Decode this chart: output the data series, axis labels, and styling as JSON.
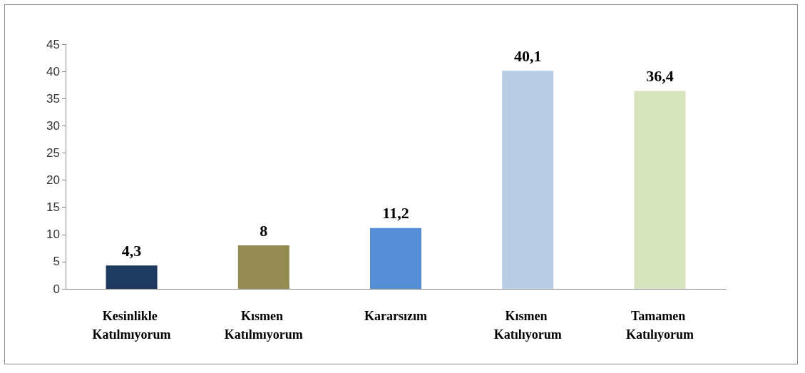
{
  "chart_data": {
    "type": "bar",
    "categories": [
      "Kesinlikle Katılmıyorum",
      "Kısmen Katılmıyorum",
      "Kararsızım",
      "Kısmen Katılıyorum",
      "Tamamen Katılıyorum"
    ],
    "values": [
      4.3,
      8,
      11.2,
      40.1,
      36.4
    ],
    "colors": [
      "#1f3a5f",
      "#948a54",
      "#558ed5",
      "#b9cde5",
      "#d7e4bd"
    ],
    "value_labels": [
      "4,3",
      "8",
      "11,2",
      "40,1",
      "36,4"
    ],
    "ylim": [
      0,
      45
    ],
    "yticks": [
      0,
      5,
      10,
      15,
      20,
      25,
      30,
      35,
      40,
      45
    ],
    "grid": false
  }
}
